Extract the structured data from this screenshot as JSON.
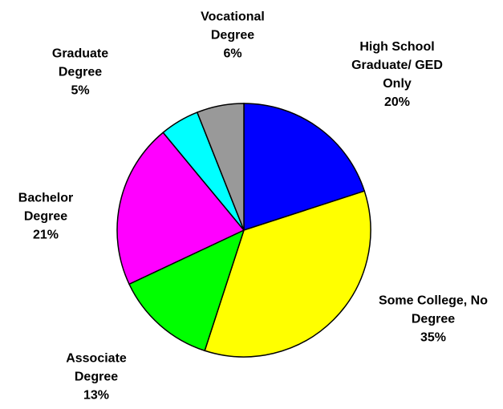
{
  "chart_data": {
    "type": "pie",
    "categories": [
      "High School Graduate/ GED Only",
      "Some College, No Degree",
      "Associate Degree",
      "Bachelor Degree",
      "Graduate Degree",
      "Vocational Degree"
    ],
    "values": [
      20,
      35,
      13,
      21,
      5,
      6
    ],
    "value_labels": [
      "20%",
      "35%",
      "13%",
      "21%",
      "5%",
      "6%"
    ],
    "colors": [
      "#0000ff",
      "#ffff00",
      "#00ff00",
      "#ff00ff",
      "#00ffff",
      "#999999"
    ]
  }
}
